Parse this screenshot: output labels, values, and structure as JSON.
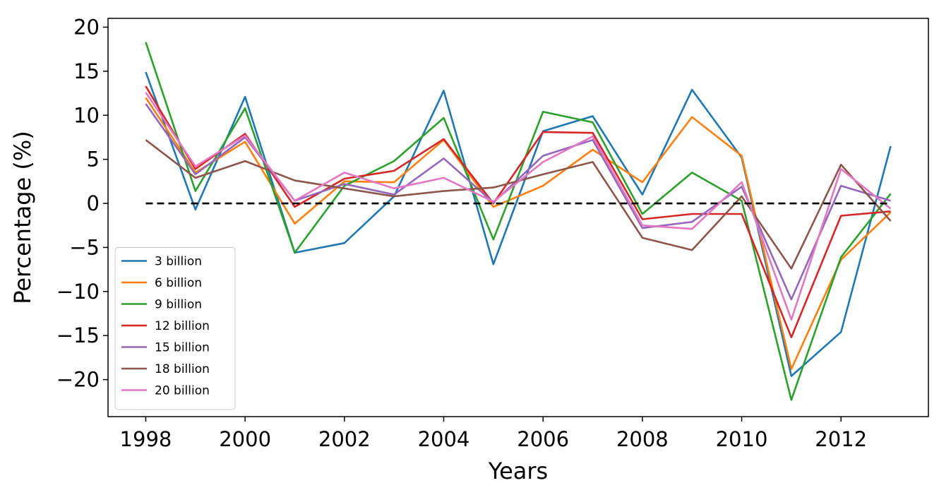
{
  "chart_data": {
    "type": "line",
    "title": "",
    "xlabel": "Years",
    "ylabel": "Percentage (%)",
    "xlim": [
      1997.24,
      1998.0,
      2013.76
    ],
    "ylim": [
      -24.2,
      21.0
    ],
    "x": [
      1998,
      1999,
      2000,
      2001,
      2002,
      2003,
      2004,
      2005,
      2006,
      2007,
      2008,
      2009,
      2010,
      2011,
      2012,
      2013
    ],
    "xticks": [
      1998,
      2000,
      2002,
      2004,
      2006,
      2008,
      2010,
      2012
    ],
    "yticks": [
      -20,
      -15,
      -10,
      -5,
      0,
      5,
      10,
      15,
      20
    ],
    "xtick_labels": [
      "1998",
      "2000",
      "2002",
      "2004",
      "2006",
      "2008",
      "2010",
      "2012"
    ],
    "ytick_labels": [
      "−20",
      "−15",
      "−10",
      "−5",
      "0",
      "5",
      "10",
      "15",
      "20"
    ],
    "grid": false,
    "legend_position": "lower-left",
    "reference_line": {
      "y": 0,
      "style": "dashed",
      "color": "#000000"
    },
    "series": [
      {
        "name": "3 billion",
        "color": "#1f77b4",
        "values": [
          14.9,
          -0.7,
          12.1,
          -5.6,
          -4.5,
          0.8,
          12.8,
          -6.9,
          8.2,
          9.9,
          1.0,
          12.9,
          5.2,
          -19.6,
          -14.6,
          6.5
        ]
      },
      {
        "name": "6 billion",
        "color": "#ff7f0e",
        "values": [
          12.0,
          3.5,
          7.0,
          -2.3,
          2.5,
          2.4,
          7.2,
          -0.4,
          2.0,
          6.1,
          2.4,
          9.8,
          5.4,
          -18.8,
          -6.4,
          -1.0
        ]
      },
      {
        "name": "9 billion",
        "color": "#2ca02c",
        "values": [
          18.3,
          1.4,
          10.8,
          -5.6,
          2.0,
          4.8,
          9.7,
          -4.1,
          10.4,
          9.2,
          -1.2,
          3.5,
          0.3,
          -22.3,
          -6.1,
          1.1
        ]
      },
      {
        "name": "12 billion",
        "color": "#d62728",
        "values": [
          13.3,
          3.9,
          7.9,
          -0.4,
          2.8,
          3.7,
          7.3,
          0.0,
          8.1,
          8.0,
          -1.8,
          -1.2,
          -1.2,
          -15.2,
          -1.4,
          -0.9
        ]
      },
      {
        "name": "15 billion",
        "color": "#9467bd",
        "values": [
          11.3,
          3.3,
          7.5,
          0.3,
          2.2,
          1.0,
          5.1,
          0.1,
          5.4,
          7.2,
          -2.8,
          -2.1,
          1.9,
          -10.9,
          2.0,
          0.3
        ]
      },
      {
        "name": "18 billion",
        "color": "#8c564b",
        "values": [
          7.2,
          2.9,
          4.8,
          2.6,
          1.7,
          0.8,
          1.4,
          1.8,
          3.3,
          4.7,
          -3.9,
          -5.3,
          0.8,
          -7.4,
          4.4,
          -2.0
        ]
      },
      {
        "name": "20 billion",
        "color": "#e377c2",
        "values": [
          12.6,
          4.2,
          7.7,
          0.3,
          3.5,
          1.7,
          2.9,
          0.2,
          4.7,
          7.6,
          -2.5,
          -2.9,
          2.4,
          -13.2,
          3.9,
          -0.6
        ]
      }
    ]
  }
}
